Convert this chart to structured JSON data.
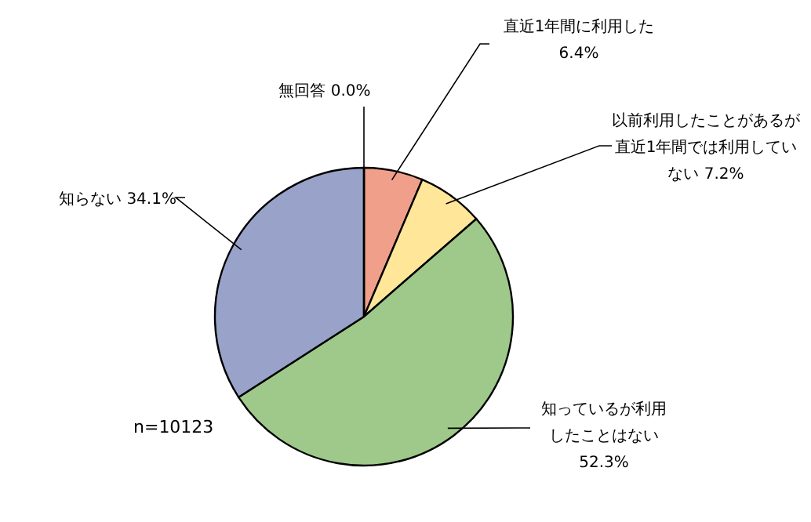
{
  "chart_data": {
    "type": "pie",
    "categories": [
      "直近1年間に利用した",
      "以前利用したことがあるが直近1年間では利用していない",
      "知っているが利用したことはない",
      "知らない",
      "無回答"
    ],
    "values": [
      6.4,
      7.2,
      52.3,
      34.1,
      0.0
    ],
    "value_labels": [
      "6.4%",
      "7.2%",
      "52.3%",
      "34.1%",
      "0.0%"
    ],
    "colors": [
      "#f0a08a",
      "#ffe699",
      "#9fc98a",
      "#99a2c8",
      "#d0d0d0"
    ],
    "annotations": [
      "n=10123"
    ],
    "legend": false
  }
}
